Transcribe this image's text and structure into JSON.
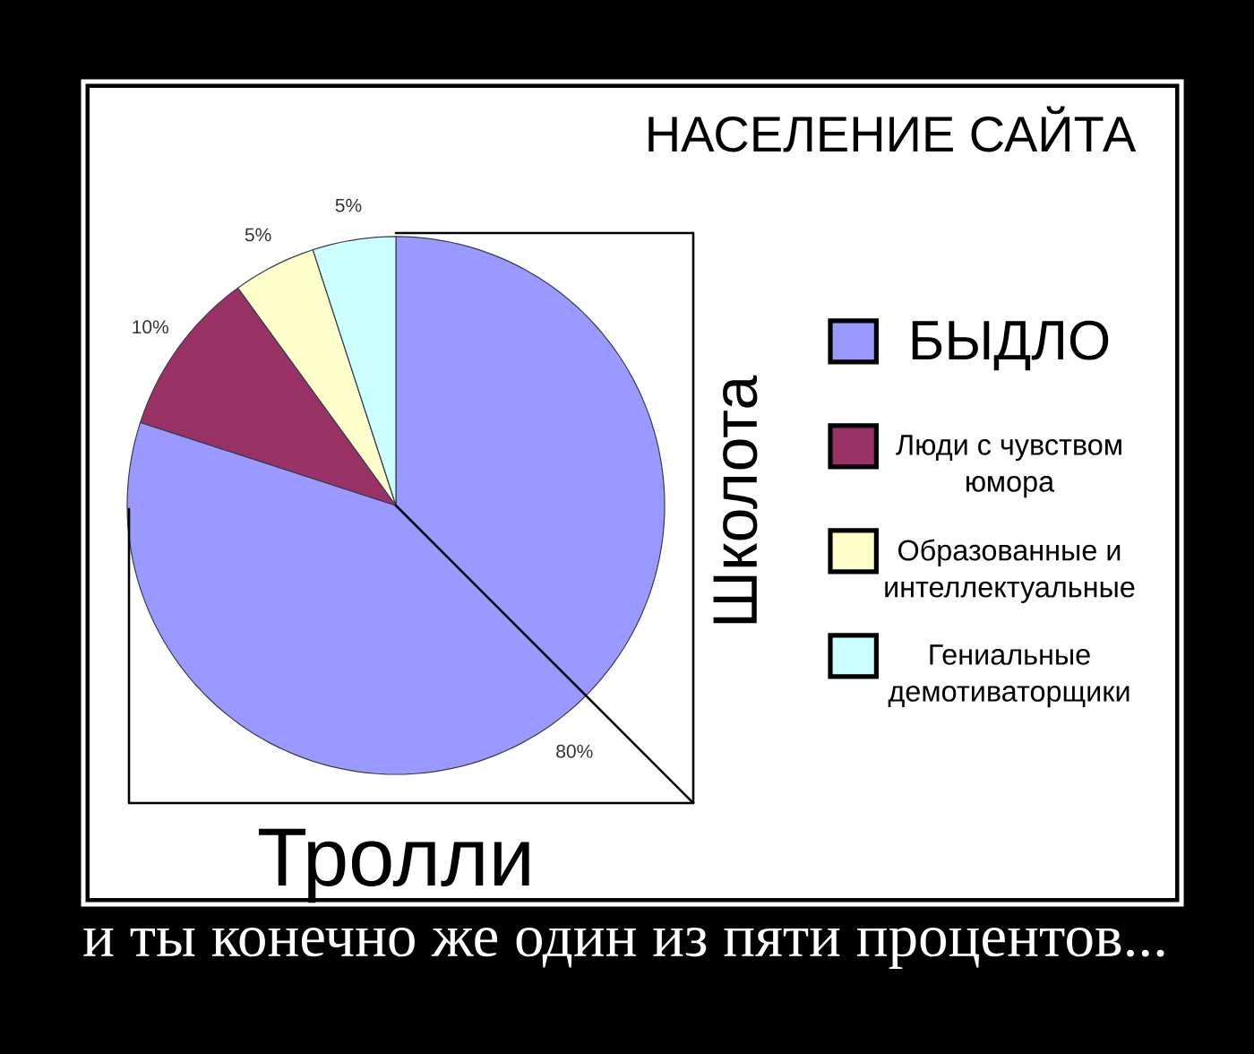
{
  "chart_data": {
    "type": "pie",
    "title": "НАСЕЛЕНИЕ САЙТА",
    "categories": [
      "БЫДЛО",
      "Люди с чувством юмора",
      "Образованные и интеллектуальные",
      "Гениальные демотиваторщики"
    ],
    "values": [
      80,
      10,
      5,
      5
    ],
    "colors": [
      "#9999ff",
      "#993366",
      "#ffffcc",
      "#ccffff"
    ],
    "value_labels": [
      "80%",
      "10%",
      "5%",
      "5%"
    ],
    "legend": "right",
    "annotations": [
      "Школота",
      "Тролли",
      "и ты конечно же один из пяти процентов..."
    ]
  }
}
